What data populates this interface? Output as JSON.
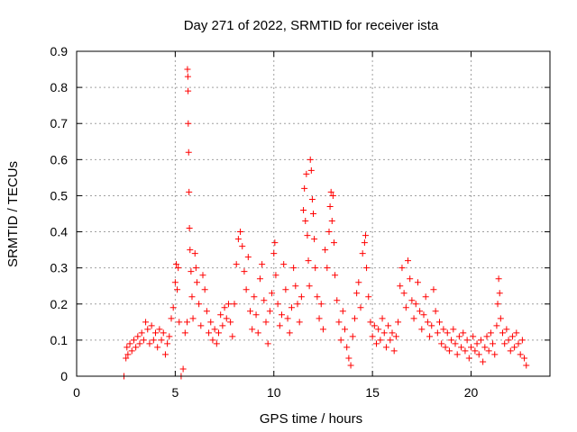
{
  "chart_data": {
    "type": "scatter",
    "title": "Day 271 of 2022, SRMTID for receiver ista",
    "xlabel": "GPS time / hours",
    "ylabel": "SRMTID / TECUs",
    "xlim": [
      0,
      24
    ],
    "ylim": [
      0,
      0.9
    ],
    "xticks": [
      0,
      5,
      10,
      15,
      20
    ],
    "xtick_labels": [
      "0",
      "5",
      "10",
      "15",
      "20"
    ],
    "yticks": [
      0,
      0.1,
      0.2,
      0.3,
      0.4,
      0.5,
      0.6,
      0.7,
      0.8,
      0.9
    ],
    "ytick_labels": [
      "0",
      "0.1",
      "0.2",
      "0.3",
      "0.4",
      "0.5",
      "0.6",
      "0.7",
      "0.8",
      "0.9"
    ],
    "grid": true,
    "legend": "none",
    "series": [
      {
        "name": "SRMTID",
        "color": "#ff0000",
        "marker": "plus",
        "points": [
          [
            2.4,
            0.0
          ],
          [
            5.3,
            0.0
          ],
          [
            5.4,
            0.02
          ],
          [
            2.5,
            0.05
          ],
          [
            2.55,
            0.08
          ],
          [
            2.6,
            0.06
          ],
          [
            2.7,
            0.09
          ],
          [
            2.8,
            0.07
          ],
          [
            2.9,
            0.1
          ],
          [
            3.0,
            0.08
          ],
          [
            3.1,
            0.11
          ],
          [
            3.2,
            0.09
          ],
          [
            3.3,
            0.12
          ],
          [
            3.4,
            0.1
          ],
          [
            3.5,
            0.15
          ],
          [
            3.6,
            0.13
          ],
          [
            3.7,
            0.09
          ],
          [
            3.8,
            0.14
          ],
          [
            3.9,
            0.1
          ],
          [
            4.0,
            0.12
          ],
          [
            4.1,
            0.08
          ],
          [
            4.2,
            0.13
          ],
          [
            4.3,
            0.1
          ],
          [
            4.4,
            0.12
          ],
          [
            4.5,
            0.06
          ],
          [
            4.6,
            0.09
          ],
          [
            4.7,
            0.11
          ],
          [
            4.8,
            0.16
          ],
          [
            4.9,
            0.19
          ],
          [
            5.0,
            0.26
          ],
          [
            5.05,
            0.31
          ],
          [
            5.1,
            0.24
          ],
          [
            5.15,
            0.3
          ],
          [
            5.2,
            0.15
          ],
          [
            5.5,
            0.12
          ],
          [
            5.6,
            0.15
          ],
          [
            5.62,
            0.85
          ],
          [
            5.64,
            0.83
          ],
          [
            5.65,
            0.79
          ],
          [
            5.66,
            0.7
          ],
          [
            5.68,
            0.62
          ],
          [
            5.7,
            0.51
          ],
          [
            5.72,
            0.41
          ],
          [
            5.75,
            0.35
          ],
          [
            5.8,
            0.29
          ],
          [
            5.85,
            0.22
          ],
          [
            5.9,
            0.16
          ],
          [
            6.0,
            0.34
          ],
          [
            6.05,
            0.3
          ],
          [
            6.1,
            0.26
          ],
          [
            6.2,
            0.2
          ],
          [
            6.3,
            0.14
          ],
          [
            6.4,
            0.28
          ],
          [
            6.5,
            0.24
          ],
          [
            6.6,
            0.18
          ],
          [
            6.7,
            0.12
          ],
          [
            6.8,
            0.15
          ],
          [
            6.9,
            0.1
          ],
          [
            7.0,
            0.13
          ],
          [
            7.1,
            0.09
          ],
          [
            7.2,
            0.12
          ],
          [
            7.3,
            0.17
          ],
          [
            7.4,
            0.14
          ],
          [
            7.5,
            0.19
          ],
          [
            7.6,
            0.16
          ],
          [
            7.7,
            0.2
          ],
          [
            7.8,
            0.15
          ],
          [
            7.9,
            0.11
          ],
          [
            8.0,
            0.2
          ],
          [
            8.1,
            0.31
          ],
          [
            8.2,
            0.38
          ],
          [
            8.3,
            0.4
          ],
          [
            8.4,
            0.36
          ],
          [
            8.5,
            0.29
          ],
          [
            8.6,
            0.24
          ],
          [
            8.7,
            0.33
          ],
          [
            8.8,
            0.18
          ],
          [
            8.9,
            0.13
          ],
          [
            9.0,
            0.22
          ],
          [
            9.1,
            0.17
          ],
          [
            9.2,
            0.12
          ],
          [
            9.3,
            0.27
          ],
          [
            9.4,
            0.31
          ],
          [
            9.5,
            0.21
          ],
          [
            9.6,
            0.15
          ],
          [
            9.7,
            0.09
          ],
          [
            9.8,
            0.18
          ],
          [
            9.9,
            0.23
          ],
          [
            10.0,
            0.34
          ],
          [
            10.05,
            0.37
          ],
          [
            10.1,
            0.28
          ],
          [
            10.2,
            0.2
          ],
          [
            10.3,
            0.14
          ],
          [
            10.4,
            0.17
          ],
          [
            10.5,
            0.31
          ],
          [
            10.6,
            0.24
          ],
          [
            10.7,
            0.16
          ],
          [
            10.8,
            0.12
          ],
          [
            10.9,
            0.19
          ],
          [
            11.0,
            0.3
          ],
          [
            11.1,
            0.25
          ],
          [
            11.2,
            0.2
          ],
          [
            11.3,
            0.15
          ],
          [
            11.4,
            0.22
          ],
          [
            11.5,
            0.46
          ],
          [
            11.55,
            0.52
          ],
          [
            11.6,
            0.43
          ],
          [
            11.65,
            0.56
          ],
          [
            11.7,
            0.39
          ],
          [
            11.75,
            0.32
          ],
          [
            11.8,
            0.25
          ],
          [
            11.85,
            0.6
          ],
          [
            11.9,
            0.57
          ],
          [
            11.95,
            0.49
          ],
          [
            12.0,
            0.45
          ],
          [
            12.05,
            0.38
          ],
          [
            12.1,
            0.3
          ],
          [
            12.2,
            0.22
          ],
          [
            12.3,
            0.16
          ],
          [
            12.4,
            0.2
          ],
          [
            12.5,
            0.13
          ],
          [
            12.6,
            0.35
          ],
          [
            12.7,
            0.3
          ],
          [
            12.8,
            0.4
          ],
          [
            12.85,
            0.47
          ],
          [
            12.9,
            0.51
          ],
          [
            12.95,
            0.43
          ],
          [
            13.0,
            0.5
          ],
          [
            13.05,
            0.37
          ],
          [
            13.1,
            0.28
          ],
          [
            13.2,
            0.21
          ],
          [
            13.3,
            0.15
          ],
          [
            13.4,
            0.1
          ],
          [
            13.5,
            0.18
          ],
          [
            13.6,
            0.13
          ],
          [
            13.7,
            0.08
          ],
          [
            13.8,
            0.05
          ],
          [
            13.9,
            0.03
          ],
          [
            14.0,
            0.11
          ],
          [
            14.1,
            0.16
          ],
          [
            14.2,
            0.23
          ],
          [
            14.3,
            0.26
          ],
          [
            14.4,
            0.19
          ],
          [
            14.5,
            0.34
          ],
          [
            14.6,
            0.37
          ],
          [
            14.65,
            0.39
          ],
          [
            14.7,
            0.3
          ],
          [
            14.8,
            0.22
          ],
          [
            14.9,
            0.15
          ],
          [
            15.0,
            0.11
          ],
          [
            15.1,
            0.14
          ],
          [
            15.2,
            0.09
          ],
          [
            15.3,
            0.13
          ],
          [
            15.4,
            0.1
          ],
          [
            15.5,
            0.16
          ],
          [
            15.6,
            0.12
          ],
          [
            15.7,
            0.08
          ],
          [
            15.8,
            0.14
          ],
          [
            15.9,
            0.1
          ],
          [
            16.0,
            0.12
          ],
          [
            16.1,
            0.07
          ],
          [
            16.2,
            0.11
          ],
          [
            16.3,
            0.15
          ],
          [
            16.4,
            0.25
          ],
          [
            16.5,
            0.3
          ],
          [
            16.6,
            0.23
          ],
          [
            16.7,
            0.19
          ],
          [
            16.8,
            0.32
          ],
          [
            16.9,
            0.27
          ],
          [
            17.0,
            0.21
          ],
          [
            17.1,
            0.16
          ],
          [
            17.2,
            0.2
          ],
          [
            17.3,
            0.26
          ],
          [
            17.4,
            0.18
          ],
          [
            17.5,
            0.13
          ],
          [
            17.6,
            0.17
          ],
          [
            17.7,
            0.22
          ],
          [
            17.8,
            0.15
          ],
          [
            17.9,
            0.11
          ],
          [
            18.0,
            0.14
          ],
          [
            18.1,
            0.24
          ],
          [
            18.2,
            0.18
          ],
          [
            18.3,
            0.12
          ],
          [
            18.4,
            0.15
          ],
          [
            18.5,
            0.09
          ],
          [
            18.6,
            0.13
          ],
          [
            18.7,
            0.08
          ],
          [
            18.8,
            0.12
          ],
          [
            18.9,
            0.07
          ],
          [
            19.0,
            0.1
          ],
          [
            19.1,
            0.13
          ],
          [
            19.2,
            0.09
          ],
          [
            19.3,
            0.06
          ],
          [
            19.4,
            0.11
          ],
          [
            19.5,
            0.08
          ],
          [
            19.6,
            0.12
          ],
          [
            19.7,
            0.07
          ],
          [
            19.8,
            0.1
          ],
          [
            19.9,
            0.05
          ],
          [
            20.0,
            0.08
          ],
          [
            20.1,
            0.11
          ],
          [
            20.2,
            0.07
          ],
          [
            20.3,
            0.09
          ],
          [
            20.4,
            0.06
          ],
          [
            20.5,
            0.1
          ],
          [
            20.6,
            0.04
          ],
          [
            20.7,
            0.08
          ],
          [
            20.8,
            0.11
          ],
          [
            20.9,
            0.07
          ],
          [
            21.0,
            0.12
          ],
          [
            21.1,
            0.09
          ],
          [
            21.2,
            0.06
          ],
          [
            21.3,
            0.14
          ],
          [
            21.35,
            0.2
          ],
          [
            21.4,
            0.27
          ],
          [
            21.45,
            0.23
          ],
          [
            21.5,
            0.16
          ],
          [
            21.6,
            0.12
          ],
          [
            21.7,
            0.09
          ],
          [
            21.8,
            0.13
          ],
          [
            21.9,
            0.1
          ],
          [
            22.0,
            0.07
          ],
          [
            22.1,
            0.11
          ],
          [
            22.2,
            0.08
          ],
          [
            22.3,
            0.12
          ],
          [
            22.4,
            0.09
          ],
          [
            22.5,
            0.06
          ],
          [
            22.6,
            0.1
          ],
          [
            22.7,
            0.05
          ],
          [
            22.8,
            0.03
          ]
        ]
      }
    ]
  }
}
